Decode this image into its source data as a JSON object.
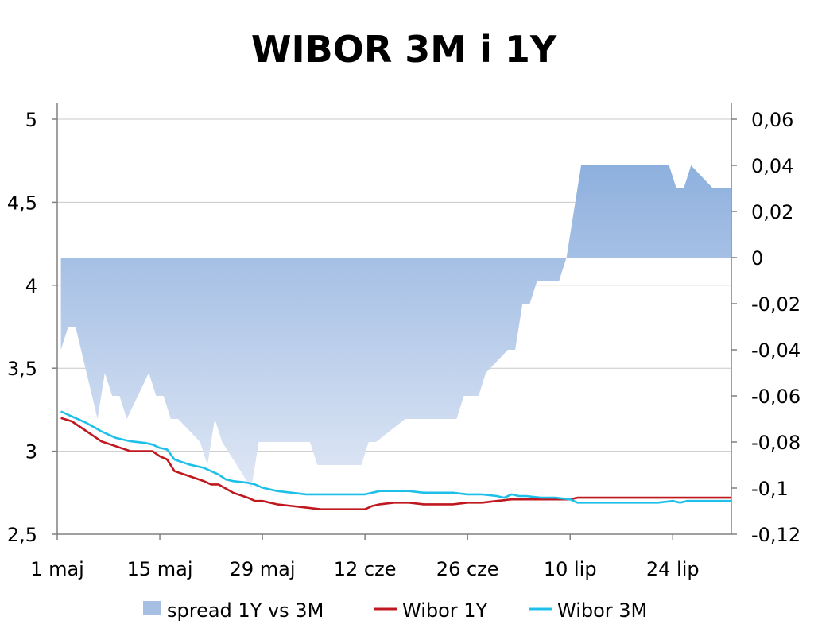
{
  "chart_data": {
    "type": "line",
    "title": "WIBOR 3M i 1Y",
    "x_ticks": [
      "1 maj",
      "15 maj",
      "29 maj",
      "12 cze",
      "26 cze",
      "10 lip",
      "24 lip"
    ],
    "x_range_days": [
      0,
      92
    ],
    "y_left": {
      "min": 2.5,
      "max": 5,
      "step": 0.5,
      "ticks": [
        "2,5",
        "3",
        "3,5",
        "4",
        "4,5",
        "5"
      ]
    },
    "y_right": {
      "min": -0.12,
      "max": 0.06,
      "step": 0.02,
      "ticks": [
        "-0,12",
        "-0,1",
        "-0,08",
        "-0,06",
        "-0,04",
        "-0,02",
        "0",
        "0,02",
        "0,04",
        "0,06"
      ]
    },
    "grid": true,
    "legend_position": "bottom",
    "colors": {
      "spread_top": "#8eb0de",
      "spread_bottom": "#dfe7f5",
      "wibor1y": "#c0181f",
      "wibor3m": "#1ec0ea",
      "grid": "#c8c8c8",
      "axis": "#808080"
    },
    "series": [
      {
        "name": "spread 1Y vs 3M",
        "kind": "area",
        "axis": "right",
        "points": [
          [
            0.5,
            -0.04
          ],
          [
            1.5,
            -0.03
          ],
          [
            2.5,
            -0.03
          ],
          [
            5.5,
            -0.07
          ],
          [
            6.5,
            -0.05
          ],
          [
            7.5,
            -0.06
          ],
          [
            8.5,
            -0.06
          ],
          [
            9.5,
            -0.07
          ],
          [
            12.5,
            -0.05
          ],
          [
            13.5,
            -0.06
          ],
          [
            14.5,
            -0.06
          ],
          [
            15.5,
            -0.07
          ],
          [
            16.5,
            -0.07
          ],
          [
            19.5,
            -0.08
          ],
          [
            20.5,
            -0.09
          ],
          [
            21.5,
            -0.07
          ],
          [
            22.5,
            -0.08
          ],
          [
            26.5,
            -0.1
          ],
          [
            27.5,
            -0.08
          ],
          [
            28.5,
            -0.08
          ],
          [
            34.5,
            -0.08
          ],
          [
            35.5,
            -0.09
          ],
          [
            41.5,
            -0.09
          ],
          [
            42.5,
            -0.08
          ],
          [
            43.5,
            -0.08
          ],
          [
            47.5,
            -0.07
          ],
          [
            54.5,
            -0.07
          ],
          [
            55.5,
            -0.06
          ],
          [
            57.5,
            -0.06
          ],
          [
            58.5,
            -0.05
          ],
          [
            61.5,
            -0.04
          ],
          [
            62.5,
            -0.04
          ],
          [
            63.5,
            -0.02
          ],
          [
            64.5,
            -0.02
          ],
          [
            65.5,
            -0.01
          ],
          [
            68.5,
            -0.01
          ],
          [
            69.5,
            0
          ],
          [
            71.5,
            0.04
          ],
          [
            83.5,
            0.04
          ],
          [
            84.5,
            0.03
          ],
          [
            85.5,
            0.03
          ],
          [
            86.5,
            0.04
          ],
          [
            89.5,
            0.03
          ],
          [
            92,
            0.03
          ]
        ]
      },
      {
        "name": "Wibor 1Y",
        "kind": "line",
        "axis": "left",
        "points": [
          [
            0.5,
            3.2
          ],
          [
            2,
            3.18
          ],
          [
            4,
            3.12
          ],
          [
            6,
            3.06
          ],
          [
            8,
            3.03
          ],
          [
            10,
            3.0
          ],
          [
            12,
            3.0
          ],
          [
            13,
            3.0
          ],
          [
            14,
            2.97
          ],
          [
            15,
            2.95
          ],
          [
            16,
            2.88
          ],
          [
            18,
            2.85
          ],
          [
            20,
            2.82
          ],
          [
            21,
            2.8
          ],
          [
            22,
            2.8
          ],
          [
            24,
            2.75
          ],
          [
            26,
            2.72
          ],
          [
            27,
            2.7
          ],
          [
            28,
            2.7
          ],
          [
            30,
            2.68
          ],
          [
            32,
            2.67
          ],
          [
            34,
            2.66
          ],
          [
            36,
            2.65
          ],
          [
            38,
            2.65
          ],
          [
            40,
            2.65
          ],
          [
            42,
            2.65
          ],
          [
            43,
            2.67
          ],
          [
            44,
            2.68
          ],
          [
            46,
            2.69
          ],
          [
            48,
            2.69
          ],
          [
            50,
            2.68
          ],
          [
            52,
            2.68
          ],
          [
            54,
            2.68
          ],
          [
            56,
            2.69
          ],
          [
            58,
            2.69
          ],
          [
            60,
            2.7
          ],
          [
            62,
            2.71
          ],
          [
            64,
            2.71
          ],
          [
            68,
            2.71
          ],
          [
            70,
            2.71
          ],
          [
            71,
            2.72
          ],
          [
            92,
            2.72
          ]
        ]
      },
      {
        "name": "Wibor 3M",
        "kind": "line",
        "axis": "left",
        "points": [
          [
            0.5,
            3.24
          ],
          [
            2,
            3.21
          ],
          [
            4,
            3.17
          ],
          [
            6,
            3.12
          ],
          [
            7,
            3.1
          ],
          [
            8,
            3.08
          ],
          [
            10,
            3.06
          ],
          [
            12,
            3.05
          ],
          [
            13,
            3.04
          ],
          [
            14,
            3.02
          ],
          [
            15,
            3.01
          ],
          [
            16,
            2.95
          ],
          [
            18,
            2.92
          ],
          [
            20,
            2.9
          ],
          [
            21,
            2.88
          ],
          [
            22,
            2.86
          ],
          [
            23,
            2.83
          ],
          [
            24,
            2.82
          ],
          [
            26,
            2.81
          ],
          [
            27,
            2.8
          ],
          [
            28,
            2.78
          ],
          [
            30,
            2.76
          ],
          [
            32,
            2.75
          ],
          [
            34,
            2.74
          ],
          [
            36,
            2.74
          ],
          [
            40,
            2.74
          ],
          [
            42,
            2.74
          ],
          [
            43,
            2.75
          ],
          [
            44,
            2.76
          ],
          [
            46,
            2.76
          ],
          [
            48,
            2.76
          ],
          [
            50,
            2.75
          ],
          [
            52,
            2.75
          ],
          [
            54,
            2.75
          ],
          [
            56,
            2.74
          ],
          [
            58,
            2.74
          ],
          [
            60,
            2.73
          ],
          [
            61,
            2.72
          ],
          [
            62,
            2.74
          ],
          [
            63,
            2.73
          ],
          [
            64,
            2.73
          ],
          [
            66,
            2.72
          ],
          [
            68,
            2.72
          ],
          [
            70,
            2.71
          ],
          [
            71,
            2.69
          ],
          [
            80,
            2.69
          ],
          [
            82,
            2.69
          ],
          [
            84,
            2.7
          ],
          [
            85,
            2.69
          ],
          [
            86,
            2.7
          ],
          [
            88,
            2.7
          ],
          [
            92,
            2.7
          ]
        ]
      }
    ]
  }
}
